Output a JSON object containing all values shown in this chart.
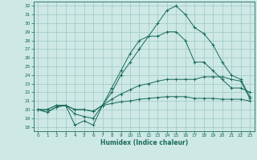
{
  "xlabel": "Humidex (Indice chaleur)",
  "xlim": [
    -0.5,
    23.5
  ],
  "ylim": [
    17.5,
    32.5
  ],
  "xticks": [
    0,
    1,
    2,
    3,
    4,
    5,
    6,
    7,
    8,
    9,
    10,
    11,
    12,
    13,
    14,
    15,
    16,
    17,
    18,
    19,
    20,
    21,
    22,
    23
  ],
  "yticks": [
    18,
    19,
    20,
    21,
    22,
    23,
    24,
    25,
    26,
    27,
    28,
    29,
    30,
    31,
    32
  ],
  "bg_color": "#cde8e5",
  "grid_color": "#9fc8c4",
  "line_color": "#1a6b5a",
  "line_main": [
    20.0,
    19.7,
    20.3,
    20.5,
    18.2,
    18.7,
    18.2,
    20.5,
    22.5,
    24.5,
    26.5,
    28.0,
    28.5,
    30.0,
    31.5,
    32.0,
    31.0,
    29.5,
    28.8,
    27.5,
    25.5,
    24.0,
    23.5,
    21.5
  ],
  "line2": [
    20.0,
    19.7,
    20.3,
    20.5,
    19.5,
    19.2,
    19.0,
    20.5,
    22.0,
    24.0,
    25.5,
    27.0,
    28.5,
    28.5,
    29.0,
    29.0,
    28.0,
    25.5,
    25.5,
    24.5,
    23.5,
    22.5,
    22.5,
    22.0
  ],
  "line3": [
    20.0,
    20.0,
    20.5,
    20.5,
    20.0,
    20.0,
    19.8,
    20.5,
    21.2,
    21.8,
    22.3,
    22.8,
    23.0,
    23.3,
    23.5,
    23.5,
    23.5,
    23.5,
    23.8,
    23.8,
    23.8,
    23.5,
    23.3,
    21.3
  ],
  "line4": [
    20.0,
    20.0,
    20.5,
    20.5,
    20.0,
    20.0,
    19.8,
    20.5,
    20.7,
    20.9,
    21.0,
    21.2,
    21.3,
    21.4,
    21.5,
    21.5,
    21.5,
    21.3,
    21.3,
    21.3,
    21.2,
    21.2,
    21.2,
    21.0
  ]
}
